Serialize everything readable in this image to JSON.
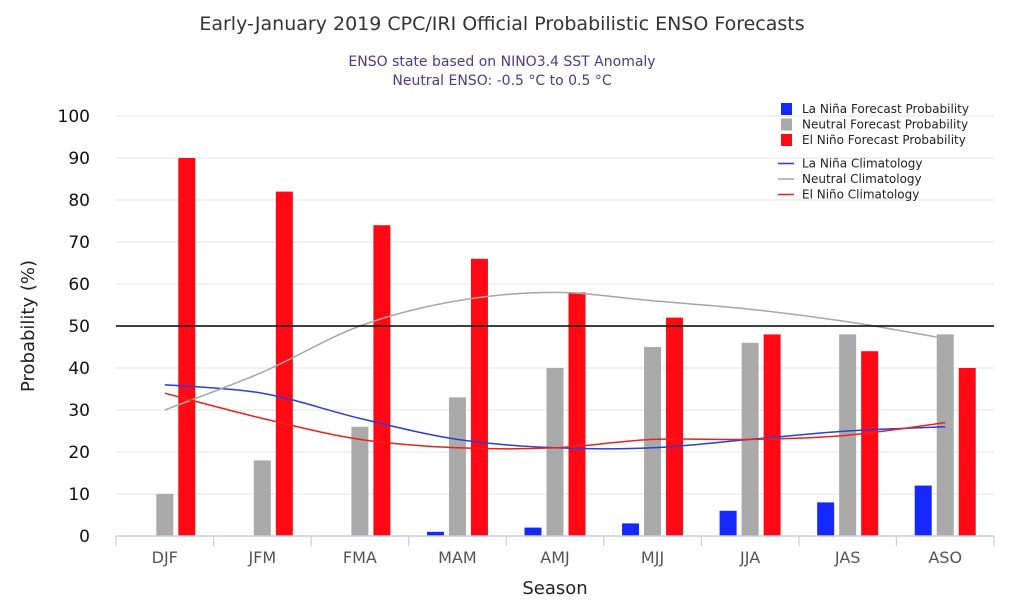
{
  "chart_data": {
    "type": "bar",
    "title": "Early-January 2019 CPC/IRI Official Probabilistic ENSO Forecasts",
    "subtitle_lines": [
      "ENSO state based on NINO3.4 SST Anomaly",
      "Neutral ENSO: -0.5 °C to 0.5 °C"
    ],
    "xlabel": "Season",
    "ylabel": "Probability (%)",
    "ylim": [
      0,
      100
    ],
    "yticks": [
      0,
      10,
      20,
      30,
      40,
      50,
      60,
      70,
      80,
      90,
      100
    ],
    "categories": [
      "DJF",
      "JFM",
      "FMA",
      "MAM",
      "AMJ",
      "MJJ",
      "JJA",
      "JAS",
      "ASO"
    ],
    "series": [
      {
        "name": "La Niña Forecast Probability",
        "kind": "bar",
        "color": "#1428ff",
        "values": [
          0,
          0,
          0,
          1,
          2,
          3,
          6,
          8,
          12
        ]
      },
      {
        "name": "Neutral Forecast Probability",
        "kind": "bar",
        "color": "#aaaaaa",
        "values": [
          10,
          18,
          26,
          33,
          40,
          45,
          46,
          48,
          48
        ]
      },
      {
        "name": "El Niño Forecast Probability",
        "kind": "bar",
        "color": "#ff0a14",
        "values": [
          90,
          82,
          74,
          66,
          58,
          52,
          48,
          44,
          40
        ]
      },
      {
        "name": "La Niña Climatology",
        "kind": "line",
        "color": "#2a3ed8",
        "values": [
          36,
          34,
          28,
          23,
          21,
          21,
          23,
          25,
          26
        ]
      },
      {
        "name": "Neutral Climatology",
        "kind": "line",
        "color": "#a6a6a6",
        "values": [
          30,
          39,
          50,
          56,
          58,
          56,
          54,
          51,
          47
        ]
      },
      {
        "name": "El Niño Climatology",
        "kind": "line",
        "color": "#e8231b",
        "values": [
          34,
          28,
          23,
          21,
          21,
          23,
          23,
          24,
          27
        ]
      }
    ],
    "reference_line": {
      "value": 50,
      "color": "#000000"
    },
    "grid": true,
    "legend_position": "top-right"
  }
}
